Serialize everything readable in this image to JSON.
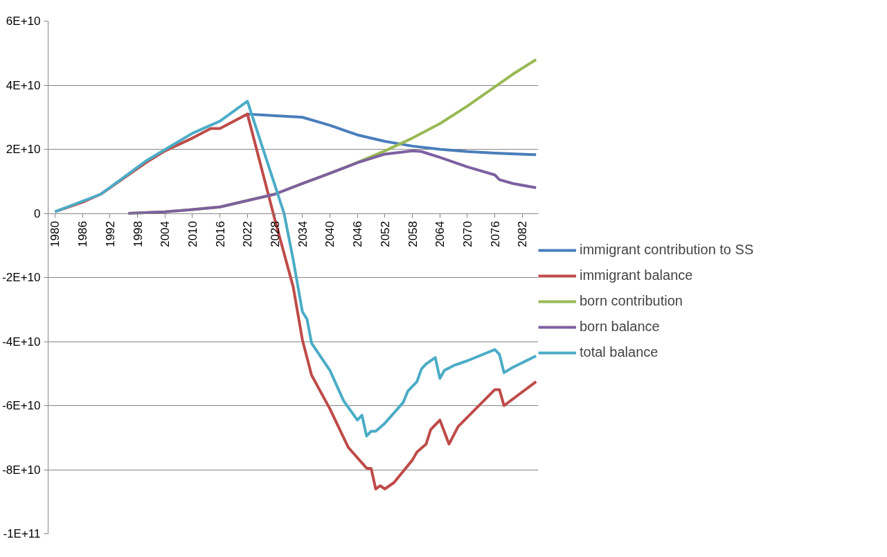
{
  "chart_data": {
    "type": "line",
    "xlim": [
      1978.5,
      2085.5
    ],
    "xticks": [
      1980,
      1986,
      1992,
      1998,
      2004,
      2010,
      2016,
      2022,
      2028,
      2034,
      2040,
      2046,
      2052,
      2058,
      2064,
      2070,
      2076,
      2082
    ],
    "ylim": [
      -100000000000.0,
      60000000000.0
    ],
    "yticks": [
      {
        "value": -100000000000.0,
        "label": "-1E+11"
      },
      {
        "value": -80000000000.0,
        "label": "-8E+10"
      },
      {
        "value": -60000000000.0,
        "label": "-6E+10"
      },
      {
        "value": -40000000000.0,
        "label": "-4E+10"
      },
      {
        "value": -20000000000.0,
        "label": "-2E+10"
      },
      0,
      {
        "value": 20000000000.0,
        "label": "2E+10"
      },
      {
        "value": 40000000000.0,
        "label": "4E+10"
      },
      {
        "value": 60000000000.0,
        "label": "6E+10"
      }
    ],
    "grid": "y",
    "legend": "right",
    "line_style": "solid",
    "marker": "none",
    "series": [
      {
        "name": "immigrant contribution to SS",
        "color": "#4a7ebb",
        "x": [
          2022,
          2028,
          2034,
          2040,
          2046,
          2052,
          2058,
          2064,
          2070,
          2076,
          2085
        ],
        "values": [
          31000000000.0,
          30500000000.0,
          30000000000.0,
          27500000000.0,
          24500000000.0,
          22500000000.0,
          21000000000.0,
          20000000000.0,
          19300000000.0,
          18800000000.0,
          18300000000.0
        ]
      },
      {
        "name": "immigrant balance",
        "color": "#be4b48",
        "x": [
          1980,
          1986,
          1990,
          1995,
          2000,
          2004,
          2010,
          2014,
          2016,
          2022,
          2028,
          2032,
          2034,
          2036,
          2040,
          2044,
          2048,
          2049,
          2050,
          2051,
          2052,
          2054,
          2058,
          2059,
          2061,
          2062,
          2063,
          2064,
          2066,
          2068,
          2076,
          2077,
          2078,
          2085
        ],
        "values": [
          500000000.0,
          3500000000.0,
          6000000000.0,
          11000000000.0,
          16000000000.0,
          19500000000.0,
          23500000000.0,
          26500000000.0,
          26500000000.0,
          31000000000.0,
          -2000000000.0,
          -23000000000.0,
          -39500000000.0,
          -50500000000.0,
          -61000000000.0,
          -73000000000.0,
          -79500000000.0,
          -79600000000.0,
          -86000000000.0,
          -85000000000.0,
          -86000000000.0,
          -84000000000.0,
          -77000000000.0,
          -74500000000.0,
          -72000000000.0,
          -67500000000.0,
          -66000000000.0,
          -64500000000.0,
          -72000000000.0,
          -66500000000.0,
          -55000000000.0,
          -55000000000.0,
          -60000000000.0,
          -52500000000.0
        ]
      },
      {
        "name": "born contribution",
        "color": "#98b954",
        "x": [
          1996,
          2004,
          2010,
          2016,
          2022,
          2028,
          2034,
          2040,
          2047,
          2052,
          2058,
          2064,
          2070,
          2076,
          2080,
          2085
        ],
        "values": [
          0,
          500000000.0,
          1200000000.0,
          2000000000.0,
          4000000000.0,
          6000000000.0,
          9300000000.0,
          12500000000.0,
          16500000000.0,
          19500000000.0,
          23500000000.0,
          28000000000.0,
          33500000000.0,
          39500000000.0,
          43500000000.0,
          48000000000.0
        ]
      },
      {
        "name": "born balance",
        "color": "#7d60a0",
        "x": [
          1996,
          2004,
          2010,
          2016,
          2022,
          2028,
          2034,
          2040,
          2046,
          2052,
          2058,
          2060,
          2064,
          2070,
          2076,
          2077,
          2080,
          2085
        ],
        "values": [
          0,
          500000000.0,
          1200000000.0,
          2000000000.0,
          4000000000.0,
          6000000000.0,
          9300000000.0,
          12500000000.0,
          15800000000.0,
          18500000000.0,
          19500000000.0,
          19300000000.0,
          17500000000.0,
          14500000000.0,
          12000000000.0,
          10500000000.0,
          9300000000.0,
          8000000000.0
        ]
      },
      {
        "name": "total balance",
        "color": "#4bacc6",
        "x": [
          1980,
          1990,
          2000,
          2010,
          2016,
          2022,
          2030,
          2032,
          2034,
          2035,
          2036,
          2040,
          2043,
          2046,
          2047,
          2048,
          2049,
          2050,
          2052,
          2056,
          2057,
          2059,
          2060,
          2061,
          2063,
          2064,
          2065,
          2067,
          2070,
          2076,
          2077,
          2078,
          2080,
          2085
        ],
        "values": [
          500000000.0,
          6000000000.0,
          16500000000.0,
          25000000000.0,
          28800000000.0,
          35000000000.0,
          0,
          -14500000000.0,
          -30700000000.0,
          -33000000000.0,
          -40500000000.0,
          -49000000000.0,
          -58500000000.0,
          -64500000000.0,
          -63000000000.0,
          -69500000000.0,
          -68000000000.0,
          -68000000000.0,
          -65500000000.0,
          -59000000000.0,
          -55500000000.0,
          -52500000000.0,
          -48500000000.0,
          -47000000000.0,
          -45000000000.0,
          -51500000000.0,
          -49000000000.0,
          -47500000000.0,
          -46000000000.0,
          -42500000000.0,
          -44000000000.0,
          -49700000000.0,
          -48000000000.0,
          -44500000000.0
        ]
      }
    ]
  }
}
